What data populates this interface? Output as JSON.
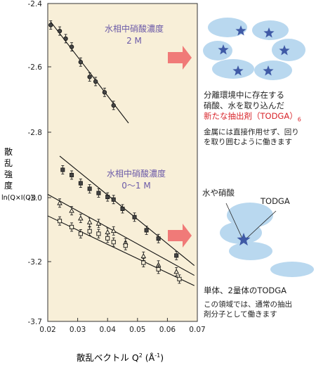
{
  "colors": {
    "plot_bg": "#f8efd8",
    "annotation_purple": "#6b5aa8",
    "arrow": "#f07a78",
    "cloud": "#b9d8ef",
    "star": "#3f5aa6",
    "highlight_red": "#d8252b"
  },
  "chart_data": {
    "type": "scatter",
    "xlabel": "散乱ベクトル Q² (Å⁻¹)",
    "ylabel": "散乱強度 ln(Q×I(Q))",
    "ylabel_parts": [
      "散",
      "乱",
      "強",
      "度",
      "ln(Q×I(Q))"
    ],
    "xlabel_parts": {
      "main": "散乱ベクトル Q",
      "sup": "2",
      "unit_open": " (Å",
      "unit_sup": "-1",
      "unit_close": ")"
    },
    "xlim": [
      0.02,
      0.07
    ],
    "ylim": [
      -3.7,
      -2.4
    ],
    "x_ticks": [
      "0.02",
      "0.03",
      "0.04",
      "0.05",
      "0.06",
      "0.07"
    ],
    "x_tick_values": [
      0.02,
      0.03,
      0.04,
      0.05,
      0.06,
      0.07
    ],
    "y_ticks": [
      "-2.4",
      "-2.6",
      "-2.8",
      "-3.0",
      "-3.2",
      "-3.7"
    ],
    "y_tick_values": [
      -2.4,
      -2.6,
      -2.8,
      -3.0,
      -3.2,
      -3.7
    ],
    "annotations": [
      {
        "lines": [
          "水相中硝酸濃度",
          "2 M"
        ]
      },
      {
        "lines": [
          "水相中硝酸濃度",
          "0～1 M"
        ]
      }
    ],
    "series": [
      {
        "marker": "circle-filled",
        "x": [
          0.021,
          0.024,
          0.026,
          0.028,
          0.031,
          0.034,
          0.036,
          0.039,
          0.042
        ],
        "y": [
          -2.468,
          -2.487,
          -2.511,
          -2.537,
          -2.585,
          -2.631,
          -2.645,
          -2.678,
          -2.718
        ],
        "fit": {
          "x": [
            0.021,
            0.047
          ],
          "y": [
            -2.458,
            -2.772
          ]
        }
      },
      {
        "marker": "square-filled",
        "x": [
          0.025,
          0.028,
          0.031,
          0.034,
          0.037,
          0.04,
          0.042,
          0.045,
          0.049,
          0.053,
          0.057,
          0.063
        ],
        "y": [
          -2.915,
          -2.931,
          -2.956,
          -2.973,
          -2.986,
          -2.998,
          -3.006,
          -3.035,
          -3.061,
          -3.102,
          -3.128,
          -3.181
        ],
        "fit": {
          "x": [
            0.024,
            0.069
          ],
          "y": [
            -2.873,
            -3.233
          ]
        }
      },
      {
        "marker": "triangle-open",
        "x": [
          0.024,
          0.028,
          0.031,
          0.034,
          0.037,
          0.04,
          0.042,
          0.046,
          0.052,
          0.057,
          0.063
        ],
        "y": [
          -3.017,
          -3.041,
          -3.065,
          -3.077,
          -3.081,
          -3.108,
          -3.104,
          -3.141,
          -3.183,
          -3.228,
          -3.285
        ],
        "fit": {
          "x": [
            0.02,
            0.069
          ],
          "y": [
            -2.99,
            -3.315
          ]
        }
      },
      {
        "marker": "square-open",
        "x": [
          0.024,
          0.028,
          0.031,
          0.034,
          0.037,
          0.04,
          0.042,
          0.046,
          0.052,
          0.057,
          0.064
        ],
        "y": [
          -3.073,
          -3.092,
          -3.113,
          -3.105,
          -3.113,
          -3.127,
          -3.139,
          -3.15,
          -3.209,
          -3.264,
          -3.346
        ],
        "fit": {
          "x": [
            0.02,
            0.069
          ],
          "y": [
            -3.057,
            -3.401
          ]
        }
      }
    ]
  },
  "side": {
    "ring_text": [
      "分離環境中に存在する",
      "硝酸、水を取り込んだ"
    ],
    "ring_highlight": "新たな抽出剤（TODGA）",
    "ring_highlight_sub": "6",
    "ring_note": [
      "金属には直接作用せず、回り",
      "を取り囲むように働きます"
    ],
    "water_label": "水や硝酸",
    "todga_label": "TODGA",
    "mono_title": "単体、2量体のTODGA",
    "mono_note": [
      "この領域では、通常の抽出",
      "剤分子として働きます"
    ]
  }
}
